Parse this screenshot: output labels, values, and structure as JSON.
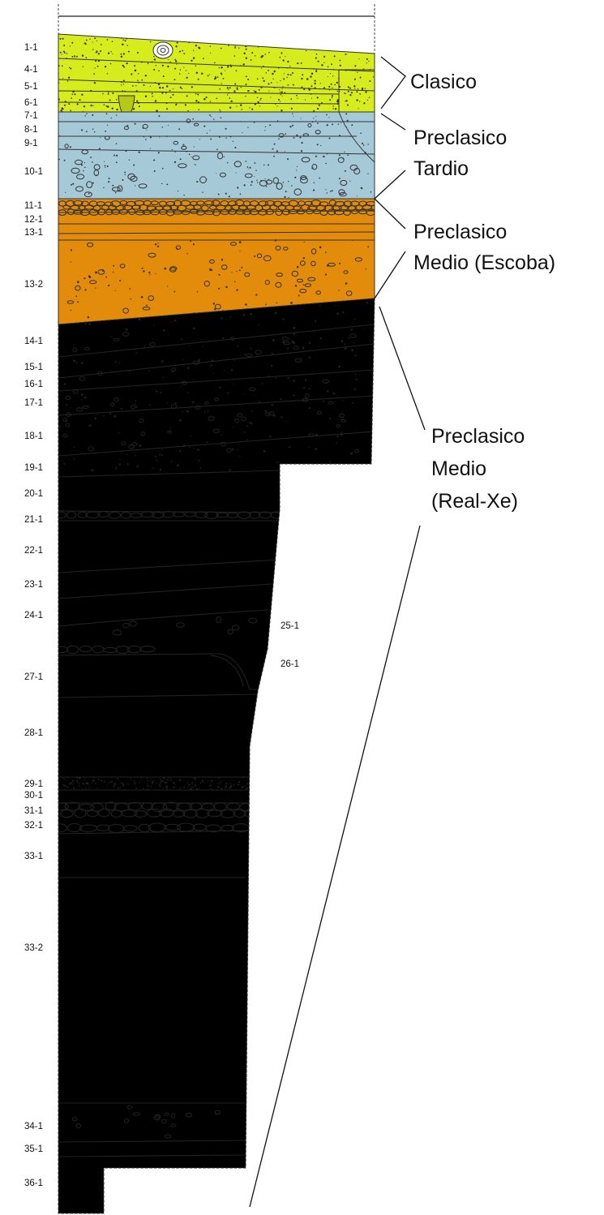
{
  "colors": {
    "clasico": "#d6ec1c",
    "preclasico_tardio": "#a6c9d8",
    "preclasico_medio_escoba": "#e38c0b",
    "preclasico_medio_real_xe": "#e0440c",
    "outline": "#222222"
  },
  "layers": [
    {
      "label": "1-1"
    },
    {
      "label": "4-1"
    },
    {
      "label": "5-1"
    },
    {
      "label": "6-1"
    },
    {
      "label": "7-1"
    },
    {
      "label": "8-1"
    },
    {
      "label": "9-1"
    },
    {
      "label": "10-1"
    },
    {
      "label": "11-1"
    },
    {
      "label": "12-1"
    },
    {
      "label": "13-1"
    },
    {
      "label": "13-2"
    },
    {
      "label": "14-1"
    },
    {
      "label": "15-1"
    },
    {
      "label": "16-1"
    },
    {
      "label": "17-1"
    },
    {
      "label": "18-1"
    },
    {
      "label": "19-1"
    },
    {
      "label": "20-1"
    },
    {
      "label": "21-1"
    },
    {
      "label": "22-1"
    },
    {
      "label": "23-1"
    },
    {
      "label": "24-1"
    },
    {
      "label": "25-1"
    },
    {
      "label": "26-1"
    },
    {
      "label": "27-1"
    },
    {
      "label": "28-1"
    },
    {
      "label": "29-1"
    },
    {
      "label": "30-1"
    },
    {
      "label": "31-1"
    },
    {
      "label": "32-1"
    },
    {
      "label": "33-1"
    },
    {
      "label": "33-2"
    },
    {
      "label": "34-1"
    },
    {
      "label": "35-1"
    },
    {
      "label": "36-1"
    }
  ],
  "periods": {
    "clasico": "Clasico",
    "preclasico_tardio_1": "Preclasico",
    "preclasico_tardio_2": "Tardio",
    "preclasico_medio_escoba_1": "Preclasico",
    "preclasico_medio_escoba_2": "Medio (Escoba)",
    "preclasico_medio_realxe_1": "Preclasico",
    "preclasico_medio_realxe_2": "Medio",
    "preclasico_medio_realxe_3": "(Real-Xe)"
  }
}
